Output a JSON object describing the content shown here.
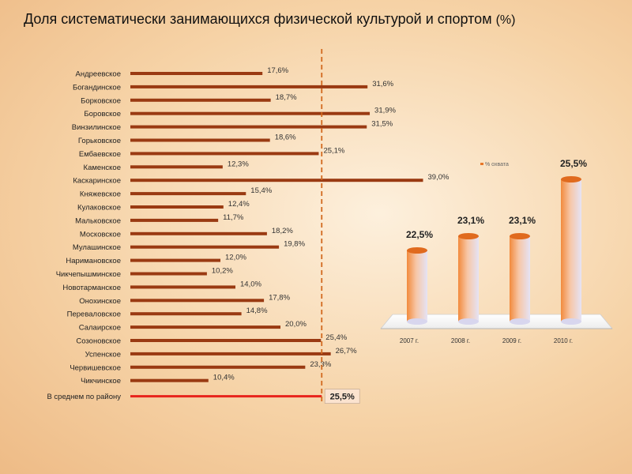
{
  "title": {
    "text": "Доля систематически занимающихся физической культурой и спортом",
    "unit": "(%)"
  },
  "chart_data": [
    {
      "type": "bar",
      "orientation": "horizontal",
      "categories": [
        "Андреевское",
        "Богандинское",
        "Борковское",
        "Боровское",
        "Винзилинское",
        "Горьковское",
        "Ембаевское",
        "Каменское",
        "Каскаринское",
        "Княжевское",
        "Кулаковское",
        "Мальковское",
        "Московское",
        "Мулашинское",
        "Наримановское",
        "Чикчепышминское",
        "Новотарманское",
        "Онохинское",
        "Переваловское",
        "Салаирское",
        "Созоновское",
        "Успенское",
        "Червишевское",
        "Чикчинское"
      ],
      "values": [
        17.6,
        31.6,
        18.7,
        31.9,
        31.5,
        18.6,
        25.1,
        12.3,
        39.0,
        15.4,
        12.4,
        11.7,
        18.2,
        19.8,
        12.0,
        10.2,
        14.0,
        17.8,
        14.8,
        20.0,
        25.4,
        26.7,
        23.3,
        10.4
      ],
      "value_labels": [
        "17,6%",
        "31,6%",
        "18,7%",
        "31,9%",
        "31,5%",
        "18,6%",
        "25,1%",
        "12,3%",
        "39,0%",
        "15,4%",
        "12,4%",
        "11,7%",
        "18,2%",
        "19,8%",
        "12,0%",
        "10,2%",
        "14,0%",
        "17,8%",
        "14,8%",
        "20,0%",
        "25,4%",
        "26,7%",
        "23,3%",
        "10,4%"
      ],
      "average": {
        "label": "В среднем по району",
        "value": 25.5,
        "value_label": "25,5%",
        "color": "#e8241c"
      },
      "bar_color": "#9a3a12"
    },
    {
      "type": "bar",
      "categories": [
        "2007 г.",
        "2008 г.",
        "2009 г.",
        "2010 г."
      ],
      "values": [
        22.5,
        23.1,
        23.1,
        25.5
      ],
      "value_labels": [
        "22,5%",
        "23,1%",
        "23,1%",
        "25,5%"
      ],
      "legend": "% охвата",
      "bar_color": "#e8782a"
    }
  ]
}
